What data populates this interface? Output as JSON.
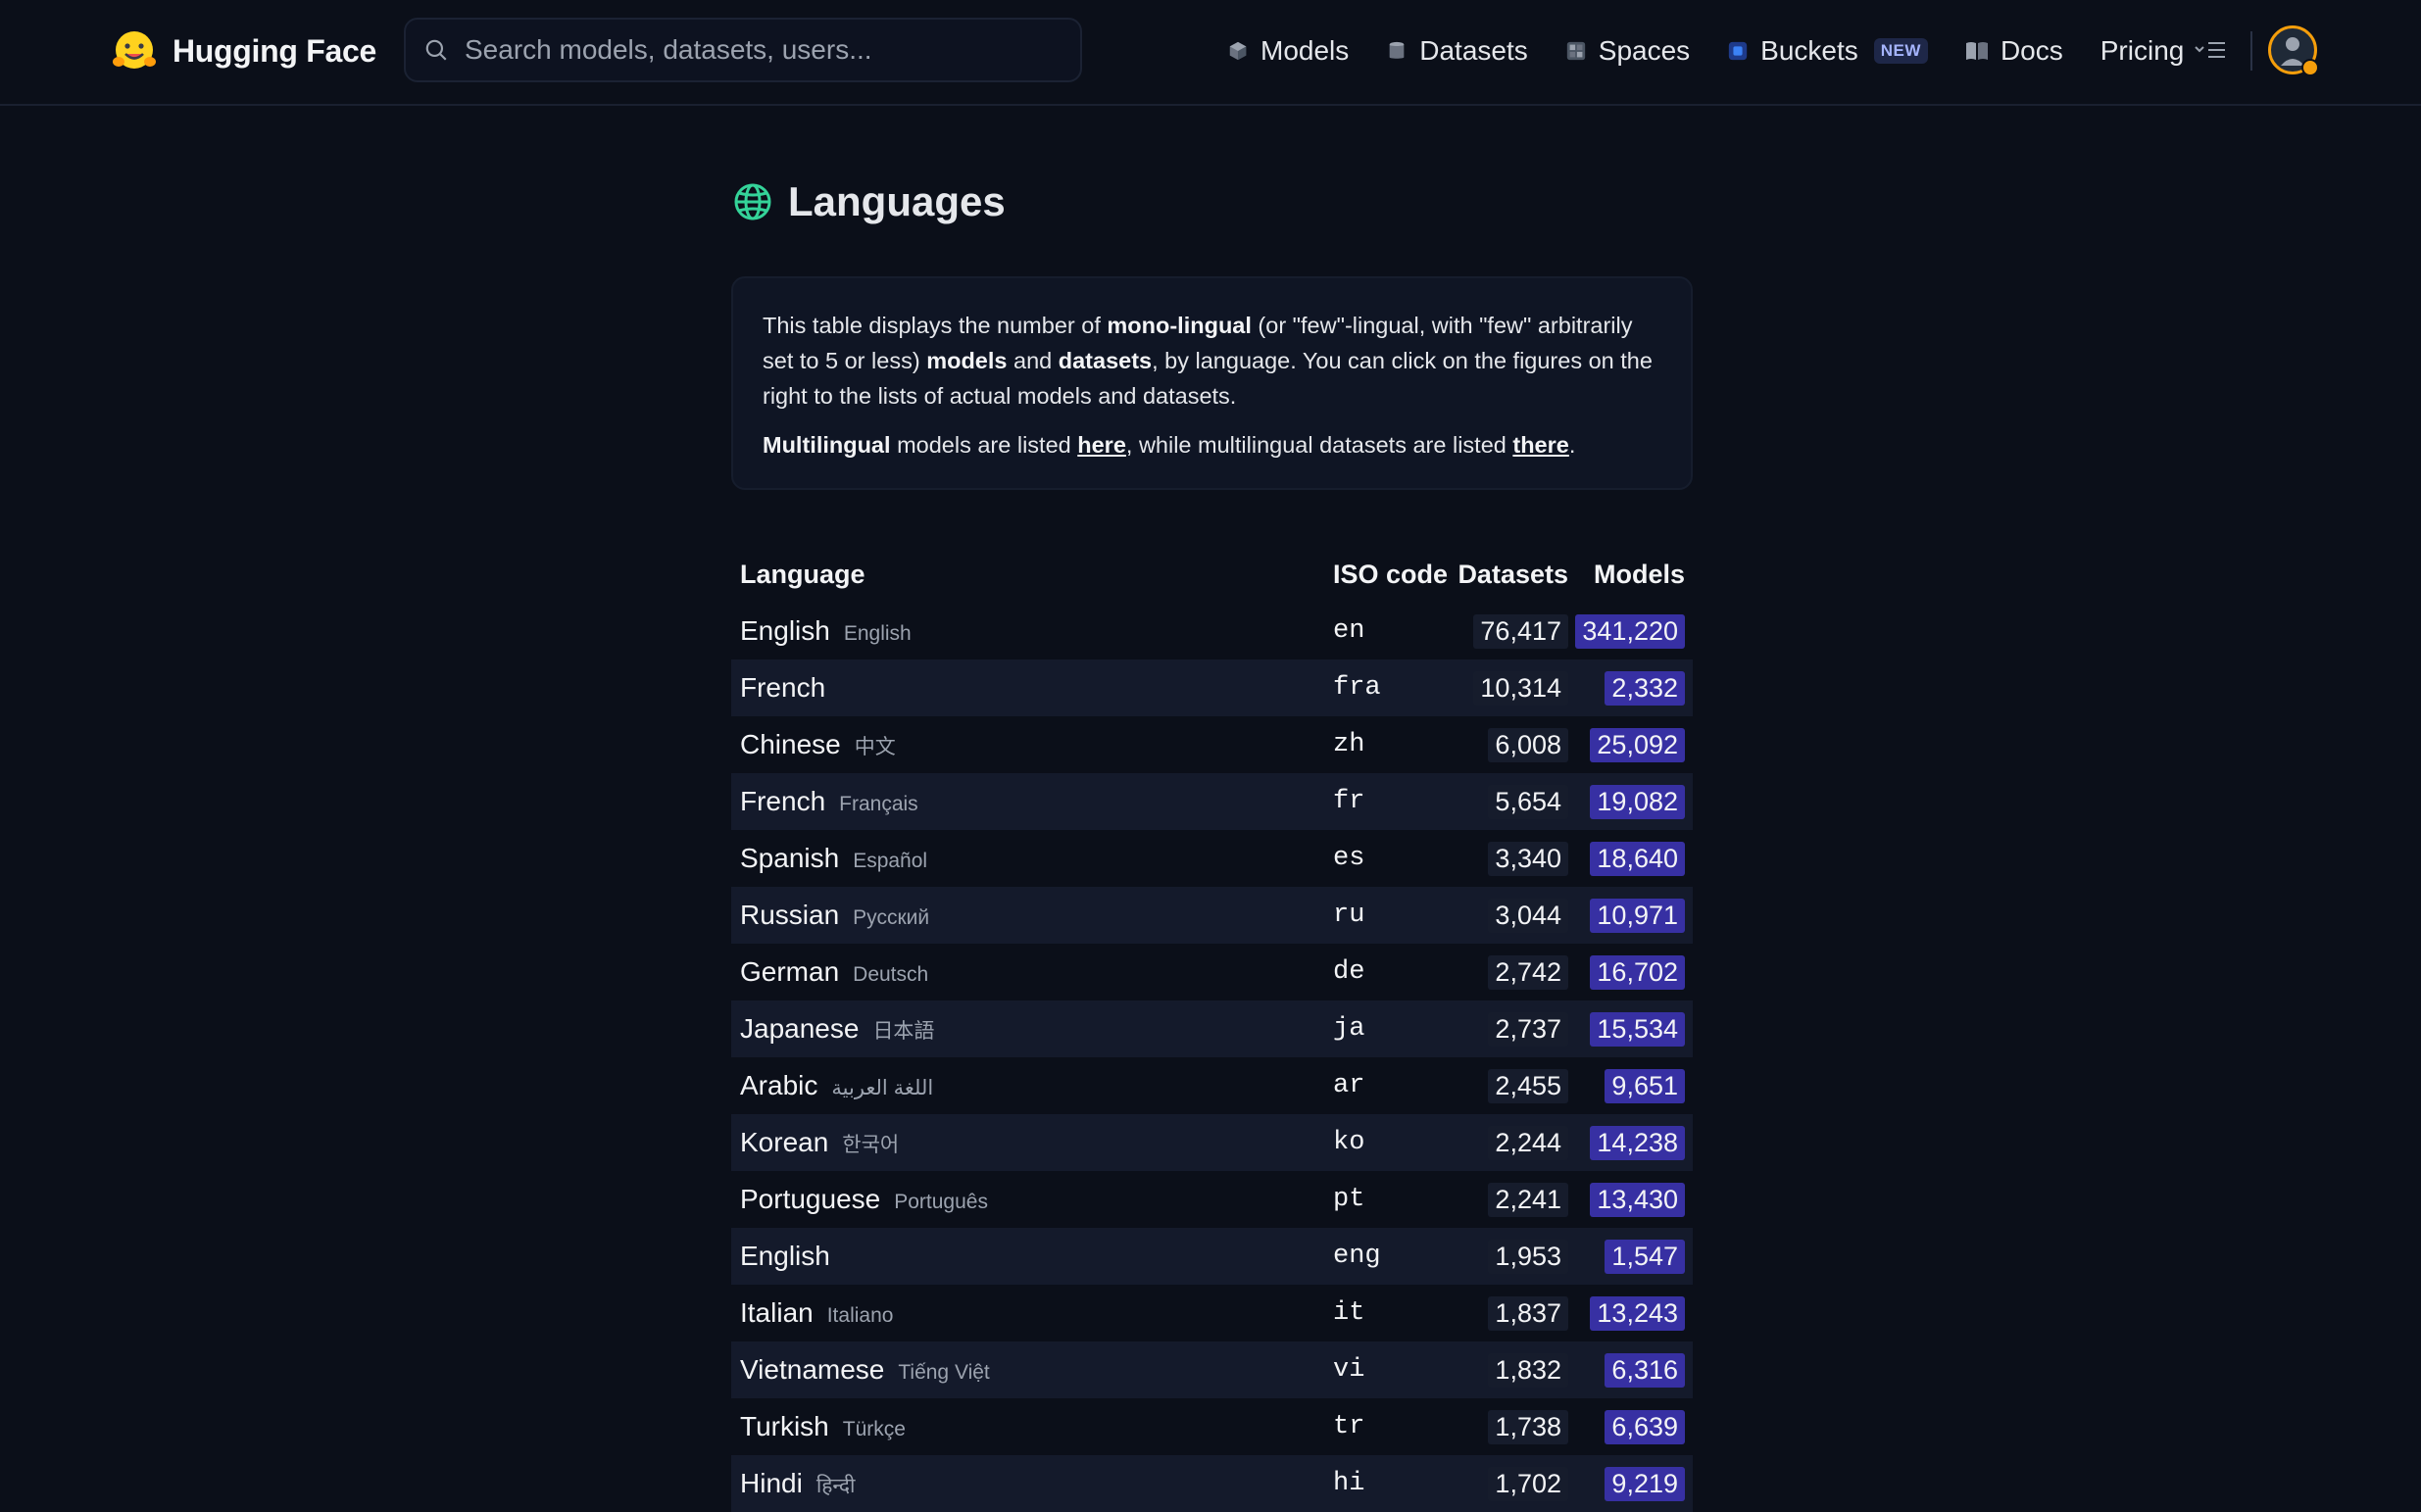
{
  "header": {
    "brand": "Hugging Face",
    "search_placeholder": "Search models, datasets, users...",
    "nav": [
      {
        "label": "Models",
        "icon": "cube-icon"
      },
      {
        "label": "Datasets",
        "icon": "database-icon"
      },
      {
        "label": "Spaces",
        "icon": "grid-icon"
      },
      {
        "label": "Buckets",
        "icon": "bucket-icon",
        "badge": "NEW"
      },
      {
        "label": "Docs",
        "icon": "book-icon"
      },
      {
        "label": "Pricing"
      }
    ]
  },
  "page": {
    "title": "Languages",
    "info": {
      "p1_a": "This table displays the number of ",
      "p1_b": "mono-lingual",
      "p1_c": " (or \"few\"-lingual, with \"few\" arbitrarily set to 5 or less) ",
      "p1_d": "models",
      "p1_e": " and ",
      "p1_f": "datasets",
      "p1_g": ", by language. You can click on the figures on the right to the lists of actual models and datasets.",
      "p2_a": "Multilingual",
      "p2_b": " models are listed ",
      "p2_c": "here",
      "p2_d": ", while multilingual datasets are listed ",
      "p2_e": "there",
      "p2_f": "."
    }
  },
  "table": {
    "headers": {
      "language": "Language",
      "iso": "ISO code",
      "datasets": "Datasets",
      "models": "Models"
    },
    "rows": [
      {
        "name": "English",
        "native": "English",
        "iso": "en",
        "datasets": "76,417",
        "models": "341,220"
      },
      {
        "name": "French",
        "native": "",
        "iso": "fra",
        "datasets": "10,314",
        "models": "2,332"
      },
      {
        "name": "Chinese",
        "native": "中文",
        "iso": "zh",
        "datasets": "6,008",
        "models": "25,092"
      },
      {
        "name": "French",
        "native": "Français",
        "iso": "fr",
        "datasets": "5,654",
        "models": "19,082"
      },
      {
        "name": "Spanish",
        "native": "Español",
        "iso": "es",
        "datasets": "3,340",
        "models": "18,640"
      },
      {
        "name": "Russian",
        "native": "Русский",
        "iso": "ru",
        "datasets": "3,044",
        "models": "10,971"
      },
      {
        "name": "German",
        "native": "Deutsch",
        "iso": "de",
        "datasets": "2,742",
        "models": "16,702"
      },
      {
        "name": "Japanese",
        "native": "日本語",
        "iso": "ja",
        "datasets": "2,737",
        "models": "15,534"
      },
      {
        "name": "Arabic",
        "native": "اللغة العربية",
        "iso": "ar",
        "datasets": "2,455",
        "models": "9,651"
      },
      {
        "name": "Korean",
        "native": "한국어",
        "iso": "ko",
        "datasets": "2,244",
        "models": "14,238"
      },
      {
        "name": "Portuguese",
        "native": "Português",
        "iso": "pt",
        "datasets": "2,241",
        "models": "13,430"
      },
      {
        "name": "English",
        "native": "",
        "iso": "eng",
        "datasets": "1,953",
        "models": "1,547"
      },
      {
        "name": "Italian",
        "native": "Italiano",
        "iso": "it",
        "datasets": "1,837",
        "models": "13,243"
      },
      {
        "name": "Vietnamese",
        "native": "Tiếng Việt",
        "iso": "vi",
        "datasets": "1,832",
        "models": "6,316"
      },
      {
        "name": "Turkish",
        "native": "Türkçe",
        "iso": "tr",
        "datasets": "1,738",
        "models": "6,639"
      },
      {
        "name": "Hindi",
        "native": "हिन्दी",
        "iso": "hi",
        "datasets": "1,702",
        "models": "9,219"
      }
    ]
  },
  "colors": {
    "background": "#0b0f19",
    "model_badge": "#3730a3",
    "accent_globe": "#34d399",
    "avatar_ring": "#f59e0b"
  }
}
